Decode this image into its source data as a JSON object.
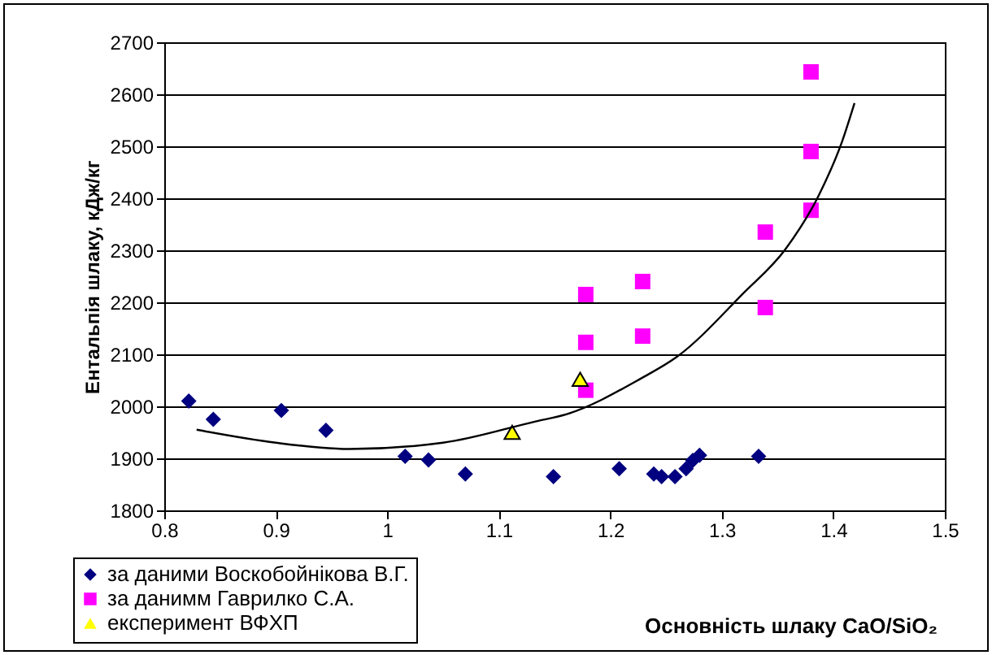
{
  "chart_data": {
    "type": "scatter",
    "xlabel": "Основність шлаку  CaO/SiO₂",
    "ylabel": "Ентальпія шлаку, кДж/кг",
    "xlim": [
      0.8,
      1.5
    ],
    "xticks": [
      0.8,
      0.9,
      1,
      1.1,
      1.2,
      1.3,
      1.4,
      1.5
    ],
    "ylim": [
      1800,
      2700
    ],
    "yticks": [
      1800,
      1900,
      2000,
      2100,
      2200,
      2300,
      2400,
      2500,
      2600,
      2700
    ],
    "grid": "y",
    "legend": "bottom left",
    "series": [
      {
        "name": "за даними Воскобойнікова В.Г.",
        "color": "#000080",
        "marker": "diamond",
        "x": [
          0.822,
          0.844,
          0.905,
          0.945,
          1.016,
          1.037,
          1.07,
          1.149,
          1.208,
          1.239,
          1.246,
          1.258,
          1.268,
          1.274,
          1.28,
          1.333
        ],
        "values": [
          2010,
          1975,
          1992,
          1954,
          1904,
          1897,
          1870,
          1865,
          1880,
          1870,
          1865,
          1865,
          1880,
          1896,
          1906,
          1904
        ]
      },
      {
        "name": "за данимм Гаврилко С.А.",
        "color": "#ff00ff",
        "marker": "square",
        "x": [
          1.178,
          1.178,
          1.178,
          1.229,
          1.229,
          1.339,
          1.339,
          1.38,
          1.38,
          1.38
        ],
        "values": [
          2215,
          2123,
          2031,
          2240,
          2135,
          2335,
          2190,
          2643,
          2490,
          2377
        ]
      },
      {
        "name": "експеримент ВФХП",
        "color": "#ffff00",
        "marker": "triangle",
        "x": [
          1.112,
          1.173
        ],
        "values": [
          1950,
          2052
        ]
      },
      {
        "type": "line",
        "color": "#000000",
        "marker": "none",
        "x": [
          0.829,
          0.9,
          0.966,
          1.05,
          1.133,
          1.161,
          1.227,
          1.259,
          1.32,
          1.357,
          1.387,
          1.408,
          1.419
        ],
        "values": [
          1955,
          1930,
          1918,
          1930,
          1971,
          1985,
          2053,
          2094,
          2219,
          2302,
          2406,
          2510,
          2583
        ]
      }
    ]
  }
}
